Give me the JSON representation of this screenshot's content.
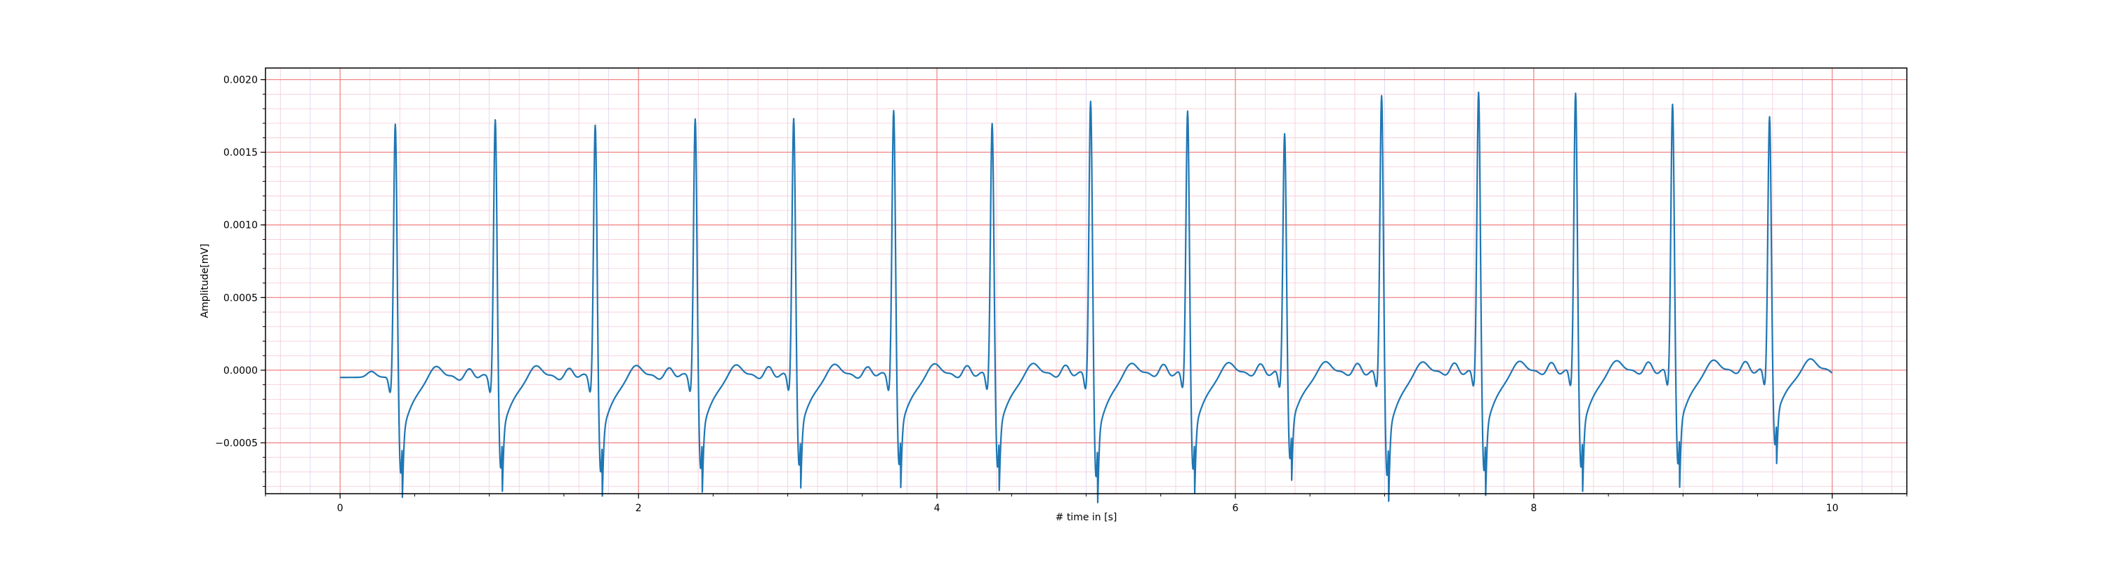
{
  "chart_data": {
    "type": "line",
    "title": "",
    "xlabel": "# time in [s]",
    "ylabel": "Amplitude[mV]",
    "xlim": [
      -0.5,
      10.5
    ],
    "ylim": [
      -0.00085,
      0.00208
    ],
    "x_ticks": [
      0,
      2,
      4,
      6,
      8,
      10
    ],
    "x_tick_labels": [
      "0",
      "2",
      "4",
      "6",
      "8",
      "10"
    ],
    "y_ticks": [
      -0.0005,
      0.0,
      0.0005,
      0.001,
      0.0015,
      0.002
    ],
    "y_tick_labels": [
      "−0.0005",
      "0.0000",
      "0.0005",
      "0.0010",
      "0.0015",
      "0.0020"
    ],
    "grid": {
      "major": true,
      "minor": true,
      "major_x_step": 2,
      "minor_x_step": 0.2,
      "major_y_step": 0.0005,
      "minor_y_step": 0.0001
    },
    "legend": "none",
    "colors": {
      "line": "#1f77b4",
      "major_grid": "#f08080",
      "minor_grid": "#f6c9d2",
      "minor_grid_x_alt": "#d9d0ee"
    },
    "series": [
      {
        "sampling_rate_hz": 100,
        "start_time_s": 0,
        "beats": [
          {
            "r_time_s": 0.37,
            "r_amp": 0.00175,
            "s_amp": -0.00067
          },
          {
            "r_time_s": 1.04,
            "r_amp": 0.00178,
            "s_amp": -0.00064
          },
          {
            "r_time_s": 1.71,
            "r_amp": 0.00174,
            "s_amp": -0.00067
          },
          {
            "r_time_s": 2.38,
            "r_amp": 0.00178,
            "s_amp": -0.00065
          },
          {
            "r_time_s": 3.04,
            "r_amp": 0.00178,
            "s_amp": -0.00063
          },
          {
            "r_time_s": 3.71,
            "r_amp": 0.00183,
            "s_amp": -0.00063
          },
          {
            "r_time_s": 4.37,
            "r_amp": 0.00174,
            "s_amp": -0.00065
          },
          {
            "r_time_s": 5.03,
            "r_amp": 0.00189,
            "s_amp": -0.00072
          },
          {
            "r_time_s": 5.68,
            "r_amp": 0.00182,
            "s_amp": -0.00067
          },
          {
            "r_time_s": 6.33,
            "r_amp": 0.00166,
            "s_amp": -0.0006
          },
          {
            "r_time_s": 6.98,
            "r_amp": 0.00192,
            "s_amp": -0.00072
          },
          {
            "r_time_s": 7.63,
            "r_amp": 0.00194,
            "s_amp": -0.00069
          },
          {
            "r_time_s": 8.28,
            "r_amp": 0.00193,
            "s_amp": -0.00067
          },
          {
            "r_time_s": 8.93,
            "r_amp": 0.00185,
            "s_amp": -0.00065
          },
          {
            "r_time_s": 9.58,
            "r_amp": 0.00176,
            "s_amp": -0.00052
          }
        ],
        "baseline_start_amp": -5e-05,
        "baseline_end_amp": 0.0,
        "t_wave_amp": 0.0001,
        "p_wave_amp": 4e-05
      }
    ]
  }
}
